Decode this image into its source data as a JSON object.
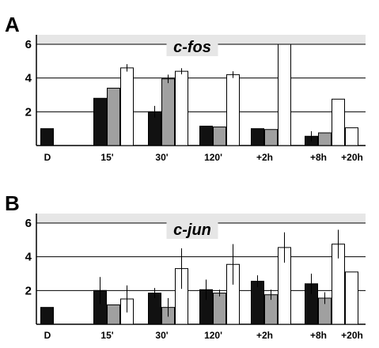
{
  "chart_data": [
    {
      "panel": "A",
      "type": "bar",
      "title": "c-fos",
      "categories": [
        "D",
        "15'",
        "30'",
        "120'",
        "+2h",
        "+8h",
        "+20h"
      ],
      "yticks": [
        2,
        4,
        6
      ],
      "ylim": [
        0,
        6.5
      ],
      "grid": true,
      "series": [
        {
          "values": [
            1.0,
            2.8,
            2.0,
            1.15,
            1.0,
            0.55,
            null
          ],
          "errors": [
            null,
            null,
            0.35,
            null,
            null,
            0.3,
            null
          ],
          "color": "#111111"
        },
        {
          "values": [
            null,
            3.4,
            3.95,
            1.1,
            0.95,
            0.75,
            null
          ],
          "errors": [
            null,
            null,
            0.25,
            null,
            null,
            null,
            null
          ],
          "color": "#a0a0a0"
        },
        {
          "values": [
            null,
            4.6,
            4.4,
            4.2,
            6.0,
            2.75,
            1.05
          ],
          "errors": [
            null,
            0.22,
            0.18,
            0.2,
            null,
            null,
            null
          ],
          "color": "#ffffff"
        }
      ]
    },
    {
      "panel": "B",
      "type": "bar",
      "title": "c-jun",
      "categories": [
        "D",
        "15'",
        "30'",
        "120'",
        "+2h",
        "+8h",
        "+20h"
      ],
      "yticks": [
        2,
        4,
        6
      ],
      "ylim": [
        0,
        6.5
      ],
      "grid": true,
      "series": [
        {
          "values": [
            1.0,
            2.0,
            1.85,
            2.05,
            2.55,
            2.4,
            null
          ],
          "errors": [
            null,
            0.8,
            0.3,
            0.6,
            0.35,
            0.6,
            null
          ],
          "color": "#111111"
        },
        {
          "values": [
            null,
            1.15,
            1.0,
            1.85,
            1.75,
            1.55,
            null
          ],
          "errors": [
            null,
            null,
            0.55,
            0.2,
            0.3,
            0.35,
            null
          ],
          "color": "#a0a0a0"
        },
        {
          "values": [
            null,
            1.5,
            3.3,
            3.55,
            4.55,
            4.75,
            3.1
          ],
          "errors": [
            null,
            0.8,
            1.2,
            1.2,
            0.9,
            0.85,
            null
          ],
          "color": "#ffffff"
        }
      ]
    }
  ]
}
